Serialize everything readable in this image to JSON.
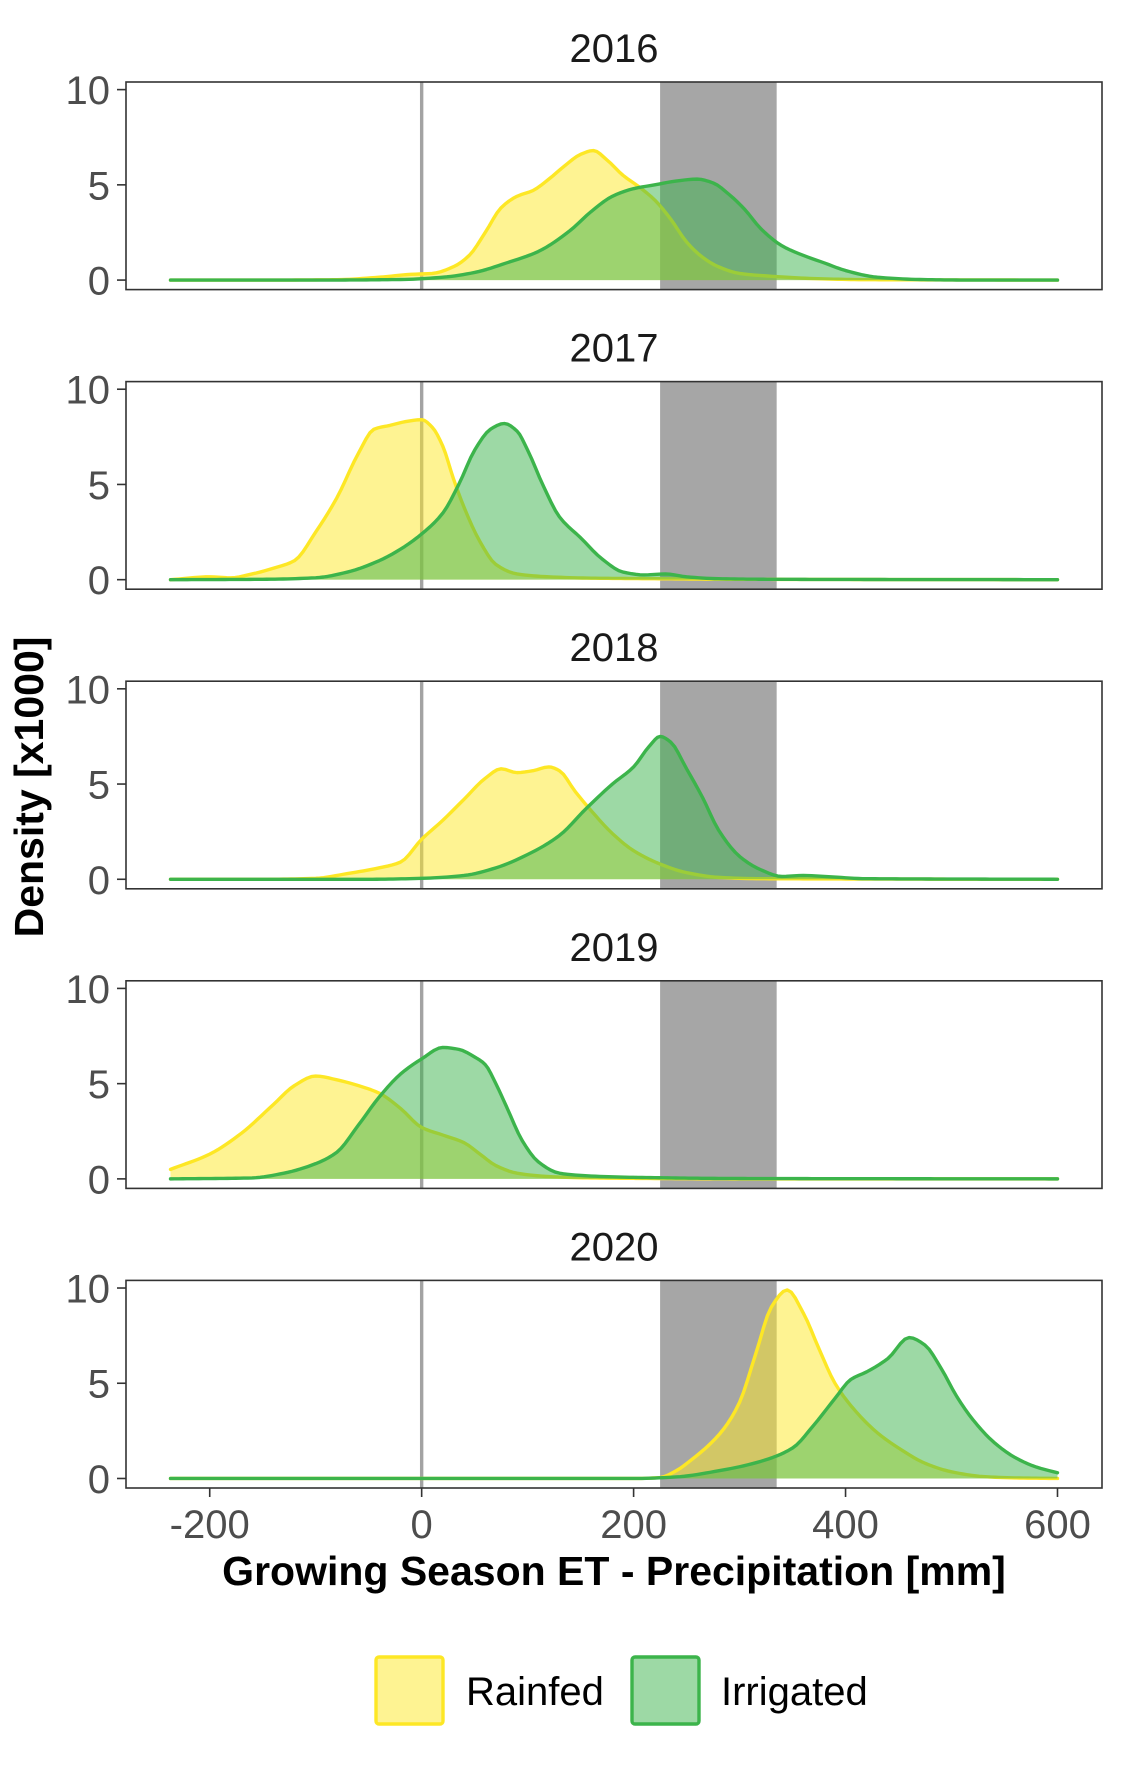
{
  "chart_data": {
    "type": "area",
    "xlabel": "Growing Season ET - Precipitation [mm]",
    "ylabel": "Density [x1000]",
    "xlim": [
      -279,
      642
    ],
    "ylim": [
      -0.5,
      10.4
    ],
    "x_ticks": [
      -200,
      0,
      200,
      400,
      600
    ],
    "x_tick_labels": [
      "-200",
      "0",
      "200",
      "400",
      "600"
    ],
    "y_ticks": [
      0,
      5,
      10
    ],
    "y_tick_labels": [
      "0",
      "5",
      "10"
    ],
    "reference_line_x": 0,
    "shaded_band_x": [
      225,
      335
    ],
    "grid": false,
    "legend": {
      "position": "bottom",
      "entries": [
        "Rainfed",
        "Irrigated"
      ]
    },
    "colors": {
      "Rainfed": "#FDE725",
      "Irrigated": "#3CB44B",
      "shaded_band": "#A6A6A6",
      "reference_line": "#A3A3A3"
    },
    "panels": [
      {
        "title": "2016",
        "series": [
          {
            "name": "Rainfed",
            "x": [
              -237,
              -150,
              -80,
              -40,
              -10,
              10,
              30,
              45,
              60,
              75,
              90,
              105,
              120,
              135,
              150,
              162,
              175,
              190,
              205,
              220,
              235,
              250,
              265,
              280,
              300,
              330,
              370,
              420,
              600
            ],
            "y": [
              0,
              0,
              0.02,
              0.15,
              0.3,
              0.35,
              0.7,
              1.3,
              2.5,
              3.8,
              4.4,
              4.7,
              5.3,
              6.0,
              6.6,
              6.8,
              6.3,
              5.5,
              4.9,
              4.2,
              3.2,
              2.0,
              1.2,
              0.7,
              0.35,
              0.2,
              0.08,
              0.02,
              0
            ]
          },
          {
            "name": "Irrigated",
            "x": [
              -237,
              -100,
              -20,
              20,
              50,
              80,
              110,
              140,
              160,
              180,
              200,
              220,
              240,
              260,
              275,
              290,
              305,
              320,
              340,
              360,
              380,
              400,
              430,
              470,
              520,
              600
            ],
            "y": [
              0,
              0,
              0.03,
              0.15,
              0.4,
              0.9,
              1.5,
              2.6,
              3.6,
              4.4,
              4.8,
              5.0,
              5.2,
              5.3,
              5.1,
              4.5,
              3.7,
              2.7,
              1.8,
              1.3,
              0.9,
              0.5,
              0.15,
              0.03,
              0,
              0
            ]
          }
        ]
      },
      {
        "title": "2017",
        "series": [
          {
            "name": "Rainfed",
            "x": [
              -237,
              -200,
              -180,
              -160,
              -140,
              -120,
              -100,
              -80,
              -60,
              -45,
              -30,
              -15,
              0,
              10,
              20,
              30,
              40,
              55,
              70,
              90,
              120,
              160,
              220,
              300,
              600
            ],
            "y": [
              0,
              0.15,
              0.1,
              0.3,
              0.6,
              1.0,
              2.5,
              4.3,
              6.6,
              7.9,
              8.1,
              8.3,
              8.4,
              8.0,
              7.0,
              5.3,
              3.8,
              2.0,
              0.8,
              0.3,
              0.15,
              0.08,
              0.05,
              0.02,
              0
            ]
          },
          {
            "name": "Irrigated",
            "x": [
              -237,
              -150,
              -100,
              -70,
              -40,
              -20,
              0,
              20,
              35,
              50,
              65,
              78,
              90,
              100,
              115,
              130,
              150,
              170,
              190,
              210,
              230,
              250,
              280,
              330,
              600
            ],
            "y": [
              0,
              0.02,
              0.1,
              0.4,
              1.0,
              1.6,
              2.4,
              3.5,
              5.0,
              6.8,
              7.9,
              8.2,
              7.8,
              6.8,
              4.9,
              3.3,
              2.2,
              1.1,
              0.4,
              0.25,
              0.3,
              0.15,
              0.05,
              0.02,
              0
            ]
          }
        ]
      },
      {
        "title": "2018",
        "series": [
          {
            "name": "Rainfed",
            "x": [
              -237,
              -150,
              -100,
              -70,
              -40,
              -20,
              0,
              20,
              40,
              60,
              75,
              90,
              105,
              120,
              130,
              145,
              160,
              180,
              200,
              225,
              250,
              280,
              320,
              600
            ],
            "y": [
              0,
              0,
              0.05,
              0.3,
              0.6,
              0.9,
              2.1,
              3.1,
              4.2,
              5.3,
              5.8,
              5.6,
              5.7,
              5.9,
              5.7,
              4.6,
              3.6,
              2.4,
              1.5,
              0.8,
              0.35,
              0.1,
              0.03,
              0
            ]
          },
          {
            "name": "Irrigated",
            "x": [
              -237,
              -50,
              0,
              40,
              70,
              100,
              130,
              155,
              180,
              200,
              215,
              225,
              235,
              250,
              265,
              280,
              300,
              320,
              340,
              360,
              380,
              420,
              600
            ],
            "y": [
              0,
              0,
              0.05,
              0.2,
              0.6,
              1.3,
              2.3,
              3.7,
              5.0,
              5.9,
              7.0,
              7.5,
              7.2,
              5.8,
              4.3,
              2.6,
              1.2,
              0.5,
              0.15,
              0.2,
              0.15,
              0.03,
              0
            ]
          }
        ]
      },
      {
        "title": "2019",
        "series": [
          {
            "name": "Rainfed",
            "x": [
              -237,
              -200,
              -170,
              -140,
              -120,
              -100,
              -80,
              -60,
              -40,
              -20,
              0,
              20,
              40,
              55,
              70,
              90,
              120,
              160,
              220,
              300,
              600
            ],
            "y": [
              0.5,
              1.3,
              2.4,
              3.9,
              4.9,
              5.4,
              5.2,
              4.9,
              4.5,
              3.7,
              2.7,
              2.3,
              1.9,
              1.3,
              0.7,
              0.3,
              0.12,
              0.05,
              0.02,
              0,
              0
            ]
          },
          {
            "name": "Irrigated",
            "x": [
              -237,
              -160,
              -130,
              -100,
              -80,
              -60,
              -40,
              -20,
              0,
              20,
              35,
              50,
              60,
              70,
              80,
              95,
              110,
              130,
              160,
              200,
              300,
              600
            ],
            "y": [
              0,
              0.05,
              0.3,
              0.8,
              1.4,
              2.8,
              4.3,
              5.5,
              6.3,
              6.9,
              6.8,
              6.4,
              6.0,
              5.0,
              3.8,
              2.0,
              0.9,
              0.3,
              0.15,
              0.08,
              0.02,
              0
            ]
          }
        ]
      },
      {
        "title": "2020",
        "series": [
          {
            "name": "Rainfed",
            "x": [
              -237,
              200,
              225,
              240,
              255,
              270,
              285,
              300,
              315,
              330,
              345,
              360,
              375,
              390,
              410,
              430,
              450,
              475,
              500,
              530,
              560,
              600
            ],
            "y": [
              0,
              0,
              0.05,
              0.4,
              1.0,
              1.7,
              2.6,
              4.0,
              6.5,
              9.0,
              9.9,
              8.7,
              6.8,
              5.0,
              3.5,
              2.4,
              1.6,
              0.8,
              0.35,
              0.1,
              0.03,
              0
            ]
          },
          {
            "name": "Irrigated",
            "x": [
              -237,
              200,
              240,
              280,
              320,
              350,
              370,
              390,
              405,
              420,
              440,
              460,
              475,
              490,
              505,
              520,
              540,
              560,
              580,
              600
            ],
            "y": [
              0,
              0,
              0.08,
              0.4,
              0.9,
              1.6,
              2.8,
              4.2,
              5.2,
              5.6,
              6.3,
              7.4,
              7.0,
              5.8,
              4.3,
              3.1,
              1.9,
              1.1,
              0.6,
              0.3
            ]
          }
        ]
      }
    ]
  }
}
